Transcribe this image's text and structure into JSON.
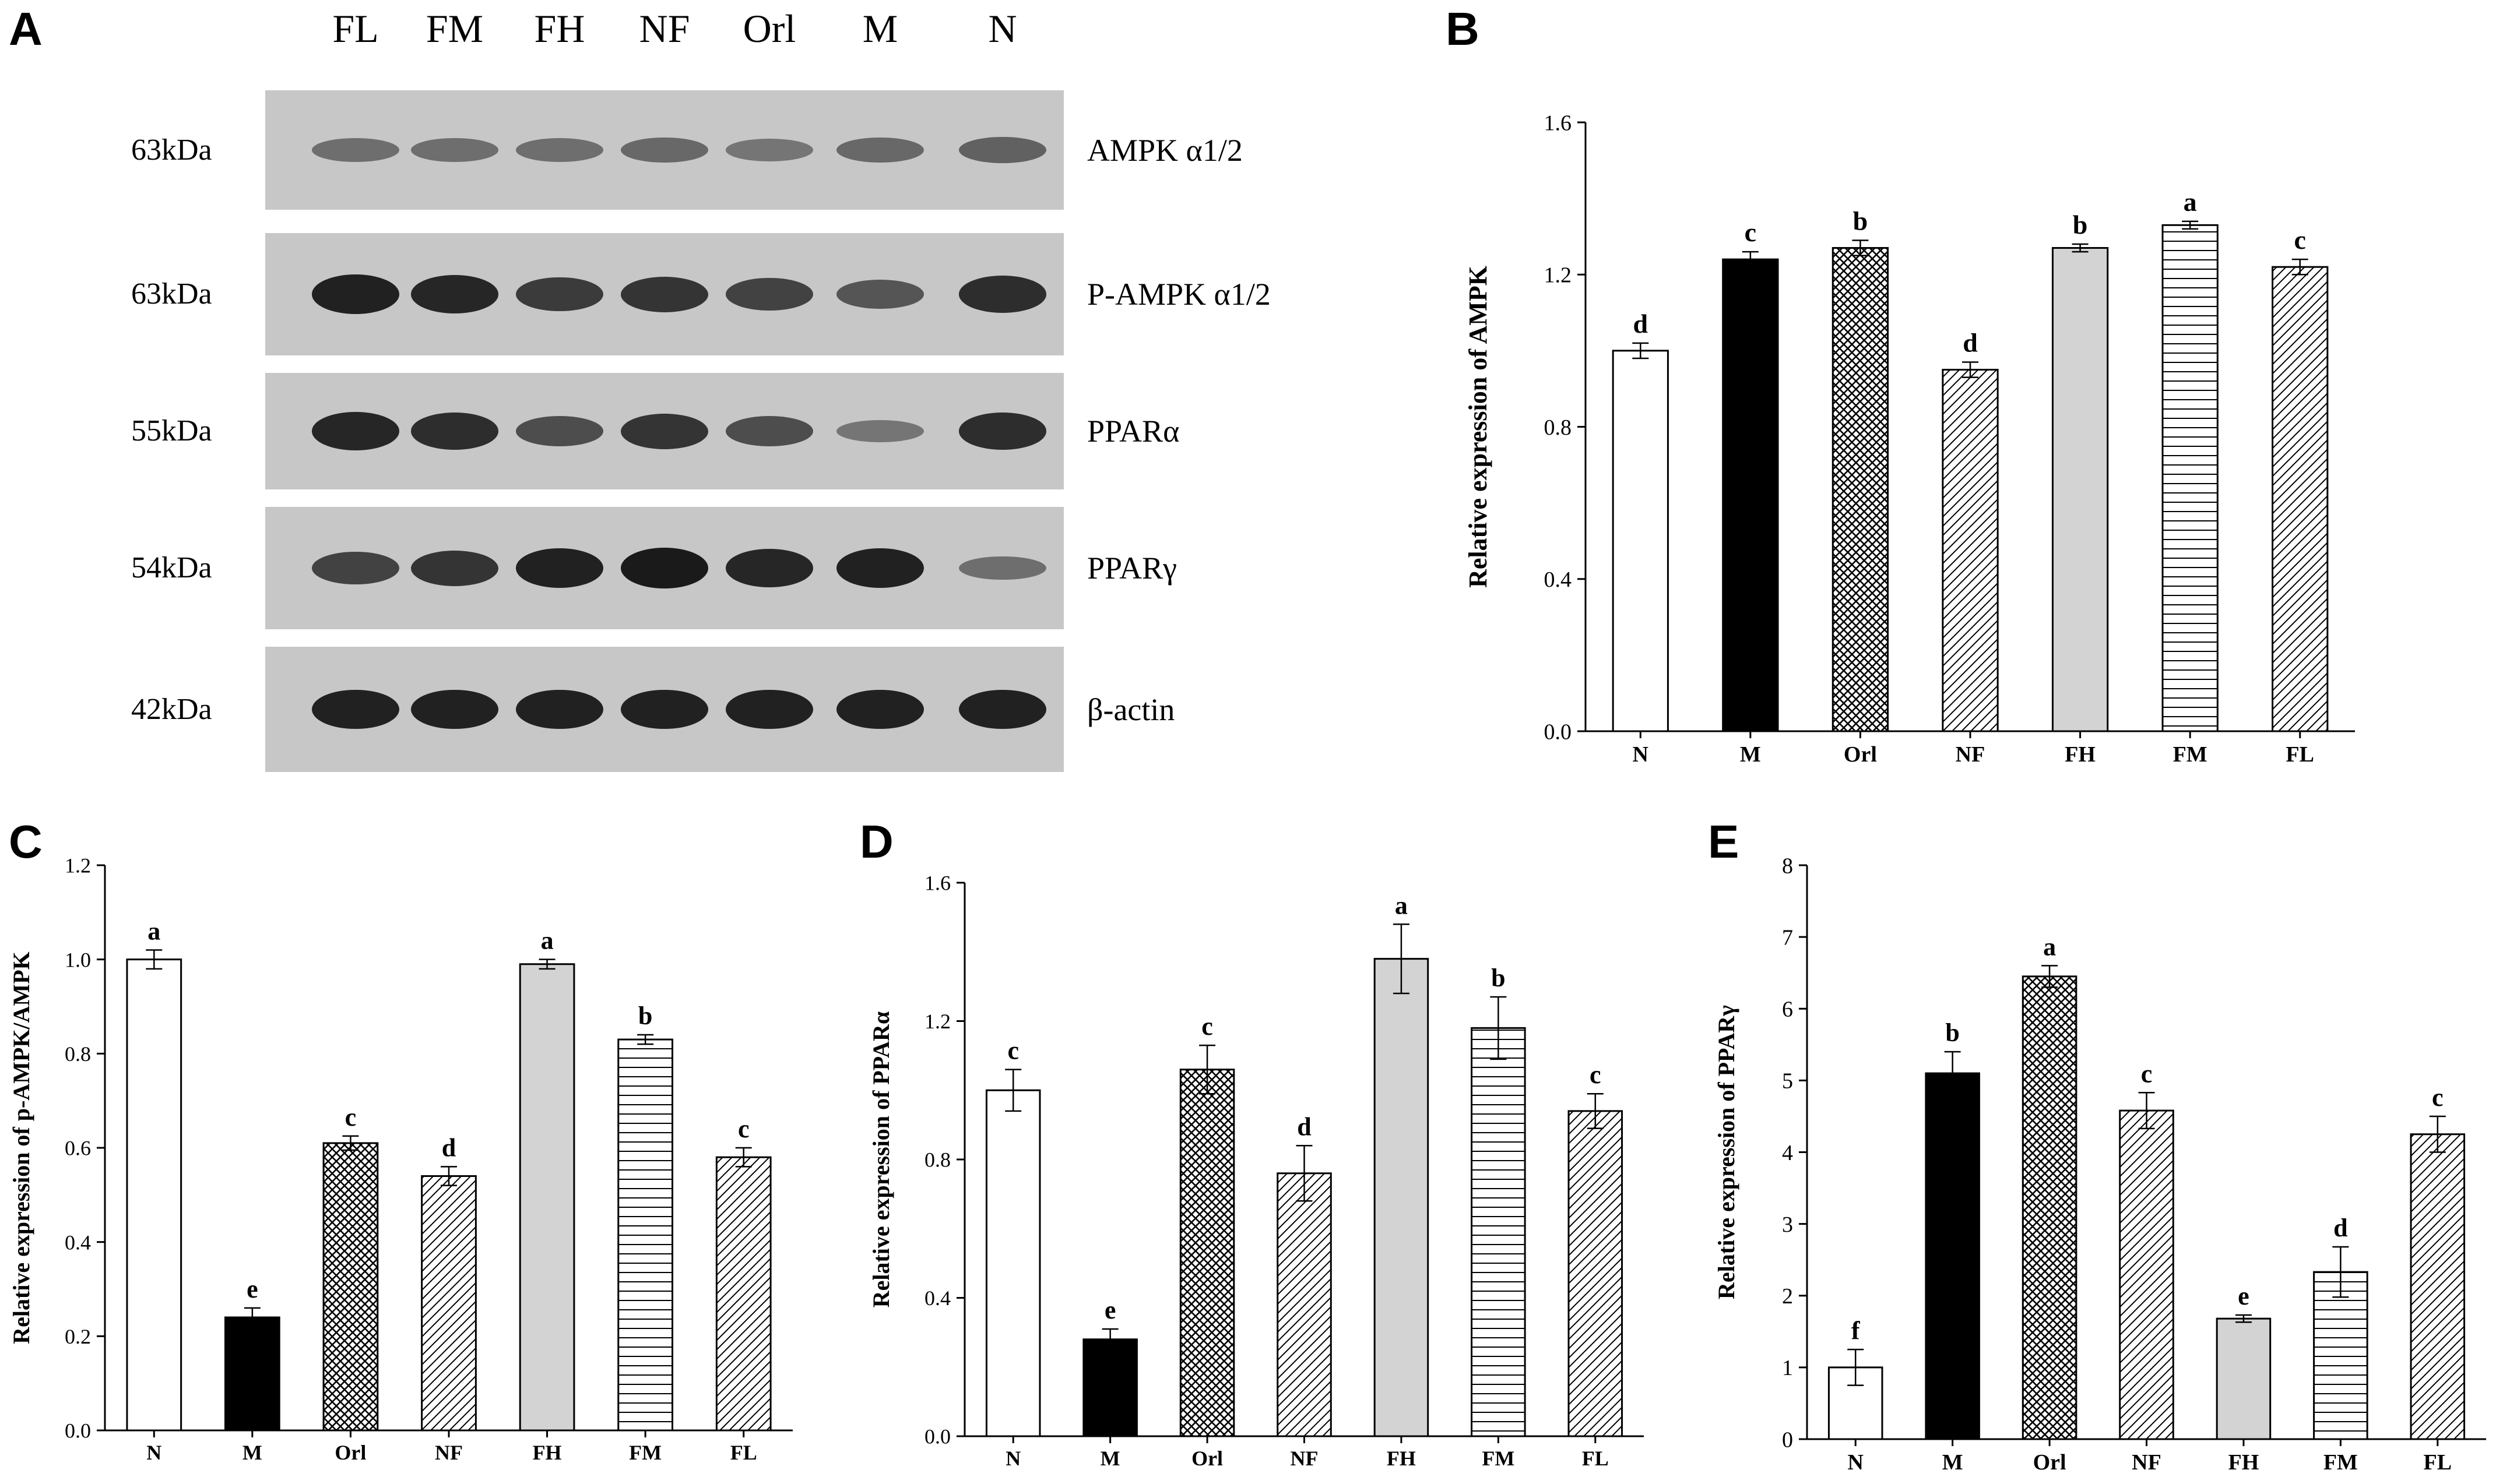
{
  "panels": {
    "A": "A",
    "B": "B",
    "C": "C",
    "D": "D",
    "E": "E"
  },
  "western_blot": {
    "lanes": [
      "FL",
      "FM",
      "FH",
      "NF",
      "Orl",
      "M",
      "N"
    ],
    "rows": [
      {
        "kda": "63kDa",
        "protein": "AMPK α1/2",
        "intensities": [
          0.35,
          0.35,
          0.35,
          0.4,
          0.3,
          0.4,
          0.45
        ]
      },
      {
        "kda": "63kDa",
        "protein": "P-AMPK α1/2",
        "intensities": [
          0.95,
          0.9,
          0.75,
          0.8,
          0.7,
          0.55,
          0.85
        ]
      },
      {
        "kda": "55kDa",
        "protein": "PPARα",
        "intensities": [
          0.9,
          0.85,
          0.6,
          0.8,
          0.6,
          0.3,
          0.85
        ]
      },
      {
        "kda": "54kDa",
        "protein": "PPARγ",
        "intensities": [
          0.7,
          0.8,
          0.95,
          1.0,
          0.9,
          0.95,
          0.35
        ]
      },
      {
        "kda": "42kDa",
        "protein": "β-actin",
        "intensities": [
          0.95,
          0.95,
          0.95,
          0.95,
          0.95,
          0.95,
          0.95
        ]
      }
    ]
  },
  "colors": {
    "blot_background": "#c7c7c7",
    "band": "#1a1a1a",
    "bar_outline": "#000000",
    "fh_fill": "#d3d3d3",
    "m_fill": "#000000"
  },
  "chart_data": [
    {
      "panel": "B",
      "type": "bar",
      "ylabel": "Relative expression of AMPK",
      "categories": [
        "N",
        "M",
        "Orl",
        "NF",
        "FH",
        "FM",
        "FL"
      ],
      "values": [
        1.0,
        1.24,
        1.27,
        0.95,
        1.27,
        1.33,
        1.22
      ],
      "errors": [
        0.02,
        0.02,
        0.02,
        0.02,
        0.01,
        0.01,
        0.02
      ],
      "letters": [
        "d",
        "c",
        "b",
        "d",
        "b",
        "a",
        "c"
      ],
      "patterns": [
        "white",
        "black",
        "cross",
        "diag",
        "gray",
        "horiz",
        "diag"
      ],
      "ylim": [
        0,
        1.6
      ],
      "yticks": [
        "0.0",
        "0.4",
        "0.8",
        "1.2",
        "1.6"
      ]
    },
    {
      "panel": "C",
      "type": "bar",
      "ylabel": "Relative expression of p-AMPK/AMPK",
      "categories": [
        "N",
        "M",
        "Orl",
        "NF",
        "FH",
        "FM",
        "FL"
      ],
      "values": [
        1.0,
        0.24,
        0.61,
        0.54,
        0.99,
        0.83,
        0.58
      ],
      "errors": [
        0.02,
        0.02,
        0.015,
        0.02,
        0.01,
        0.01,
        0.02
      ],
      "letters": [
        "a",
        "e",
        "c",
        "d",
        "a",
        "b",
        "c"
      ],
      "patterns": [
        "white",
        "black",
        "cross",
        "diag",
        "gray",
        "horiz",
        "diag"
      ],
      "ylim": [
        0,
        1.2
      ],
      "yticks": [
        "0.0",
        "0.2",
        "0.4",
        "0.6",
        "0.8",
        "1.0",
        "1.2"
      ]
    },
    {
      "panel": "D",
      "type": "bar",
      "ylabel": "Relative expression of PPARα",
      "categories": [
        "N",
        "M",
        "Orl",
        "NF",
        "FH",
        "FM",
        "FL"
      ],
      "values": [
        1.0,
        0.28,
        1.06,
        0.76,
        1.38,
        1.18,
        0.94
      ],
      "errors": [
        0.06,
        0.03,
        0.07,
        0.08,
        0.1,
        0.09,
        0.05
      ],
      "letters": [
        "c",
        "e",
        "c",
        "d",
        "a",
        "b",
        "c"
      ],
      "patterns": [
        "white",
        "black",
        "cross",
        "diag",
        "gray",
        "horiz",
        "diag"
      ],
      "ylim": [
        0,
        1.6
      ],
      "yticks": [
        "0.0",
        "0.4",
        "0.8",
        "1.2",
        "1.6"
      ]
    },
    {
      "panel": "E",
      "type": "bar",
      "ylabel": "Relative expression of PPARγ",
      "categories": [
        "N",
        "M",
        "Orl",
        "NF",
        "FH",
        "FM",
        "FL"
      ],
      "values": [
        1.0,
        5.1,
        6.45,
        4.58,
        1.68,
        2.33,
        4.25
      ],
      "errors": [
        0.25,
        0.3,
        0.15,
        0.25,
        0.05,
        0.35,
        0.25
      ],
      "letters": [
        "f",
        "b",
        "a",
        "c",
        "e",
        "d",
        "c"
      ],
      "patterns": [
        "white",
        "black",
        "cross",
        "diag",
        "gray",
        "horiz",
        "diag"
      ],
      "ylim": [
        0,
        8
      ],
      "yticks": [
        "0",
        "1",
        "2",
        "3",
        "4",
        "5",
        "6",
        "7",
        "8"
      ]
    }
  ]
}
